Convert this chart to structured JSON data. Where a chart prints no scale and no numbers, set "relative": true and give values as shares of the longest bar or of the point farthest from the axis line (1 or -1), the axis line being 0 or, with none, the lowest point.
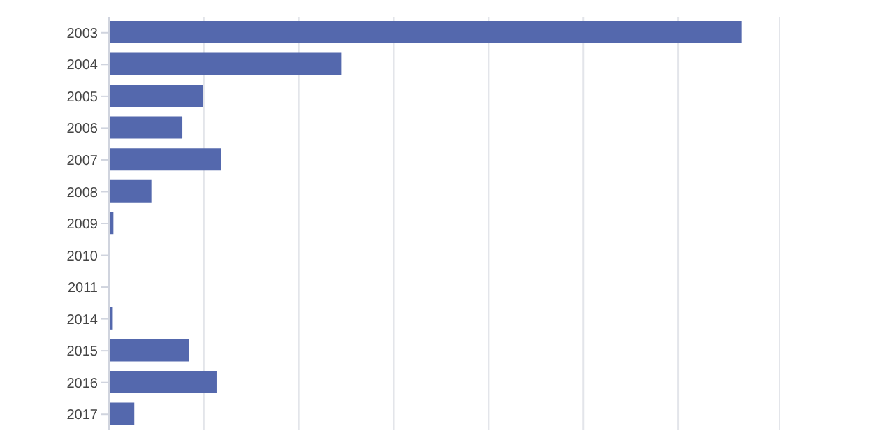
{
  "chart_data": {
    "type": "bar",
    "orientation": "horizontal",
    "relative": true,
    "categories": [
      "2003",
      "2004",
      "2005",
      "2006",
      "2007",
      "2008",
      "2009",
      "2010",
      "2011",
      "2014",
      "2015",
      "2016",
      "2017"
    ],
    "values": [
      1,
      0.367,
      0.149,
      0.116,
      0.177,
      0.067,
      0.007,
      0.002,
      0.002,
      0.006,
      0.126,
      0.17,
      0.04
    ],
    "color": "#5468ad",
    "grid": "x"
  }
}
